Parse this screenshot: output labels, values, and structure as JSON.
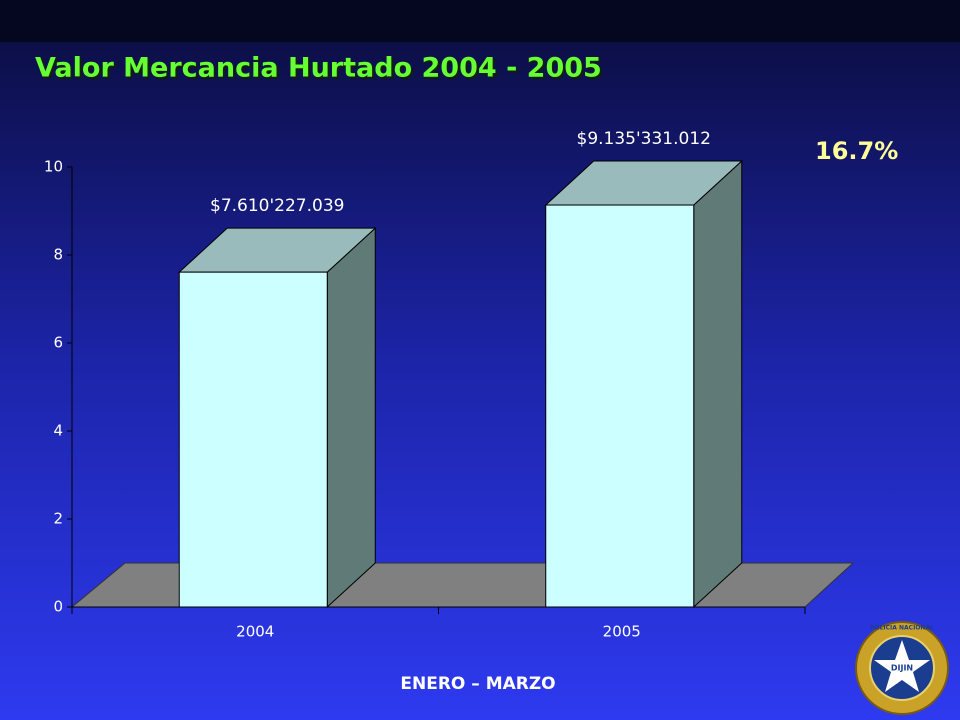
{
  "chart_data": {
    "type": "bar3d",
    "title": "Valor Mercancia Hurtado 2004 - 2005",
    "categories": [
      "2004",
      "2005"
    ],
    "values": [
      7.610227039,
      9.135331012
    ],
    "value_labels": [
      "$7.610'227.039",
      "$9.135'331.012"
    ],
    "annotation": "16.7%",
    "footer": "ENERO – MARZO",
    "ylim": [
      0,
      10
    ],
    "yticks": [
      0,
      2,
      4,
      6,
      8,
      10
    ],
    "color": "#ccffff",
    "logo": {
      "top": "POLICIA NACIONAL",
      "center": "DIJIN"
    }
  }
}
